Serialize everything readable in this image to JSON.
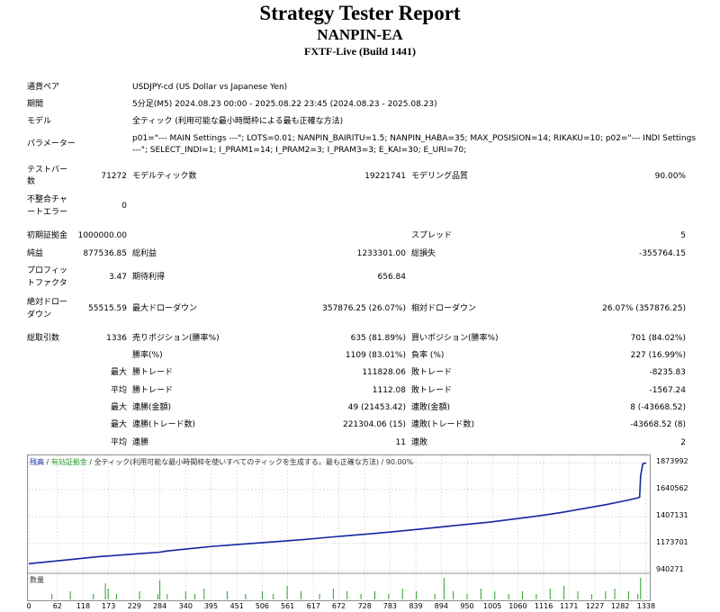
{
  "header": {
    "title": "Strategy Tester Report",
    "ea_name": "NANPIN-EA",
    "server": "FXTF-Live (Build 1441)"
  },
  "settings": {
    "symbol_label": "通貨ペア",
    "symbol_value": "USDJPY-cd (US Dollar vs Japanese Yen)",
    "period_label": "期間",
    "period_value": "5分足(M5) 2024.08.23 00:00 - 2025.08.22 23:45 (2024.08.23 - 2025.08.23)",
    "model_label": "モデル",
    "model_value": "全ティック (利用可能な最小時間枠による最も正確な方法)",
    "params_label": "パラメーター",
    "params_line1": "p01=\"--- MAIN Settings ---\"; LOTS=0.01; NANPIN_BAIRITU=1.5; NANPIN_HABA=35; MAX_POSISION=14; RIKAKU=10; p02=\"--- INDI Settings",
    "params_line2": "---\"; SELECT_INDI=1; I_PRAM1=14; I_PRAM2=3; I_PRAM3=3; E_KAI=30; E_URI=70;"
  },
  "bars": {
    "label_l1": "テストバー",
    "label_l2": "数",
    "value": "71272",
    "ticks_label": "モデルティック数",
    "ticks_value": "19221741",
    "quality_label": "モデリング品質",
    "quality_value": "90.00%"
  },
  "mismatch": {
    "label_l1": "不整合チャ",
    "label_l2": "ートエラー",
    "value": "0"
  },
  "results": {
    "deposit_label": "初期証拠金",
    "deposit_value": "1000000.00",
    "spread_label": "スプレッド",
    "spread_value": "5",
    "net_label": "純益",
    "net_value": "877536.85",
    "gross_profit_label": "総利益",
    "gross_profit_value": "1233301.00",
    "gross_loss_label": "総損失",
    "gross_loss_value": "-355764.15",
    "pf_label_l1": "プロフィッ",
    "pf_label_l2": "トファクタ",
    "pf_value": "3.47",
    "payoff_label": "期待利得",
    "payoff_value": "656.84",
    "absdd_label_l1": "絶対ドロー",
    "absdd_label_l2": "ダウン",
    "absdd_value": "55515.59",
    "maxdd_label": "最大ドローダウン",
    "maxdd_value": "357876.25 (26.07%)",
    "reldd_label": "相対ドローダウン",
    "reldd_value": "26.07% (357876.25)"
  },
  "trades": {
    "total_label": "総取引数",
    "total_value": "1336",
    "short_label": "売りポジション(勝率%)",
    "short_value": "635 (81.89%)",
    "long_label": "買いポジション(勝率%)",
    "long_value": "701 (84.02%)",
    "win_label": "勝率(%)",
    "win_value": "1109 (83.01%)",
    "loss_label": "負率 (%)",
    "loss_value": "227 (16.99%)",
    "max1": "最大",
    "largest_win_label": "勝トレード",
    "largest_win_value": "111828.06",
    "largest_loss_label": "敗トレード",
    "largest_loss_value": "-8235.83",
    "avg1": "平均",
    "avg_win_label": "勝トレード",
    "avg_win_value": "1112.08",
    "avg_loss_label": "敗トレード",
    "avg_loss_value": "-1567.24",
    "max2": "最大",
    "cons_win_label": "連勝(金額)",
    "cons_win_value": "49 (21453.42)",
    "cons_loss_label": "連敗(金額)",
    "cons_loss_value": "8 (-43668.52)",
    "max3": "最大",
    "cons_profit_label": "連勝(トレード数)",
    "cons_profit_value": "221304.06 (15)",
    "cons_lossamt_label": "連敗(トレード数)",
    "cons_lossamt_value": "-43668.52 (8)",
    "avg2": "平均",
    "avg_cons_win_label": "連勝",
    "avg_cons_win_value": "11",
    "avg_cons_loss_label": "連敗",
    "avg_cons_loss_value": "2"
  },
  "chart": {
    "legend_balance": "残高",
    "legend_sep": " / ",
    "legend_equity": "有効証拠金",
    "legend_desc": " / 全ティック(利用可能な最小時間枠を使いすべてのティックを生成する。最も正確な方法) / 90.00%",
    "volume_label": "数量",
    "balance_color": "#1428a0",
    "equity_color": "#28a028",
    "volume_color": "#28a028"
  },
  "chart_data": {
    "type": "line",
    "y_ticks": [
      "1873992",
      "1640562",
      "1407131",
      "1173701",
      "940271"
    ],
    "x_ticks": [
      "0",
      "62",
      "118",
      "173",
      "229",
      "284",
      "340",
      "395",
      "451",
      "506",
      "561",
      "617",
      "672",
      "728",
      "783",
      "839",
      "894",
      "950",
      "1005",
      "1060",
      "1116",
      "1171",
      "1227",
      "1282",
      "1338"
    ],
    "ylim": [
      940271,
      1873992
    ],
    "xlim": [
      0,
      1344
    ],
    "series": [
      {
        "x": [
          0,
          50,
          100,
          150,
          200,
          250,
          284,
          300,
          350,
          400,
          450,
          500,
          550,
          600,
          650,
          700,
          750,
          800,
          850,
          900,
          950,
          1000,
          1050,
          1100,
          1150,
          1200,
          1250,
          1300,
          1320,
          1324,
          1326,
          1331,
          1338
        ],
        "values": [
          1000000,
          1020000,
          1040000,
          1060000,
          1075000,
          1090000,
          1100000,
          1110000,
          1130000,
          1150000,
          1165000,
          1180000,
          1195000,
          1210000,
          1228000,
          1245000,
          1262000,
          1280000,
          1300000,
          1320000,
          1340000,
          1360000,
          1385000,
          1410000,
          1440000,
          1475000,
          1510000,
          1550000,
          1570000,
          1575000,
          1760000,
          1865000,
          1870000
        ]
      }
    ],
    "volume": {
      "x": [
        50,
        90,
        140,
        166,
        172,
        190,
        240,
        280,
        284,
        300,
        340,
        360,
        380,
        430,
        470,
        506,
        530,
        560,
        590,
        630,
        660,
        690,
        720,
        750,
        780,
        810,
        840,
        880,
        900,
        920,
        950,
        980,
        1010,
        1040,
        1070,
        1100,
        1130,
        1160,
        1190,
        1220,
        1250,
        1270,
        1300,
        1320,
        1326
      ],
      "values": [
        2,
        3,
        2,
        6,
        4,
        2,
        3,
        2,
        7,
        2,
        3,
        2,
        4,
        3,
        2,
        3,
        2,
        5,
        3,
        2,
        4,
        3,
        2,
        3,
        2,
        4,
        3,
        2,
        8,
        3,
        2,
        4,
        3,
        2,
        3,
        2,
        4,
        5,
        3,
        2,
        3,
        4,
        3,
        2,
        8
      ]
    }
  }
}
